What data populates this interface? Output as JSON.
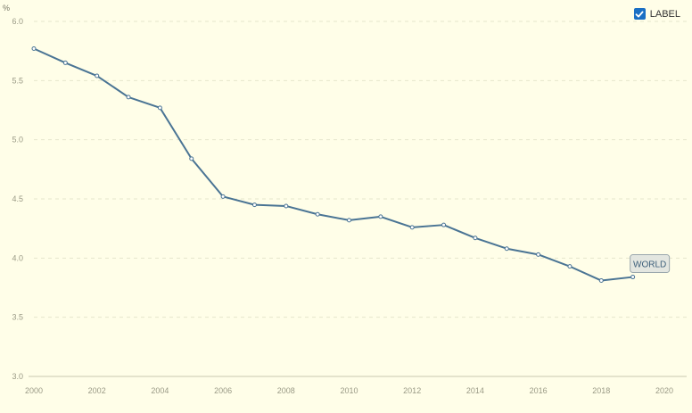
{
  "legend": {
    "label_toggle_text": "LABEL",
    "checked": true
  },
  "chart_data": {
    "type": "line",
    "unit_label": "%",
    "x": [
      2000,
      2001,
      2002,
      2003,
      2004,
      2005,
      2006,
      2007,
      2008,
      2009,
      2010,
      2011,
      2012,
      2013,
      2014,
      2015,
      2016,
      2017,
      2018,
      2019
    ],
    "series": [
      {
        "name": "WORLD",
        "values": [
          5.77,
          5.65,
          5.54,
          5.36,
          5.27,
          4.84,
          4.52,
          4.45,
          4.44,
          4.37,
          4.32,
          4.35,
          4.26,
          4.28,
          4.17,
          4.08,
          4.03,
          3.93,
          3.81,
          3.84
        ],
        "color": "#4a7494"
      }
    ],
    "xlim": [
      2000,
      2020
    ],
    "ylim": [
      3.0,
      6.0
    ],
    "x_ticks": [
      "2000",
      "2002",
      "2004",
      "2006",
      "2008",
      "2010",
      "2012",
      "2014",
      "2016",
      "2018",
      "2020"
    ],
    "y_ticks": [
      "3.0",
      "3.5",
      "4.0",
      "4.5",
      "5.0",
      "5.5",
      "6.0"
    ],
    "grid": true,
    "legend_placement": "top-right"
  }
}
